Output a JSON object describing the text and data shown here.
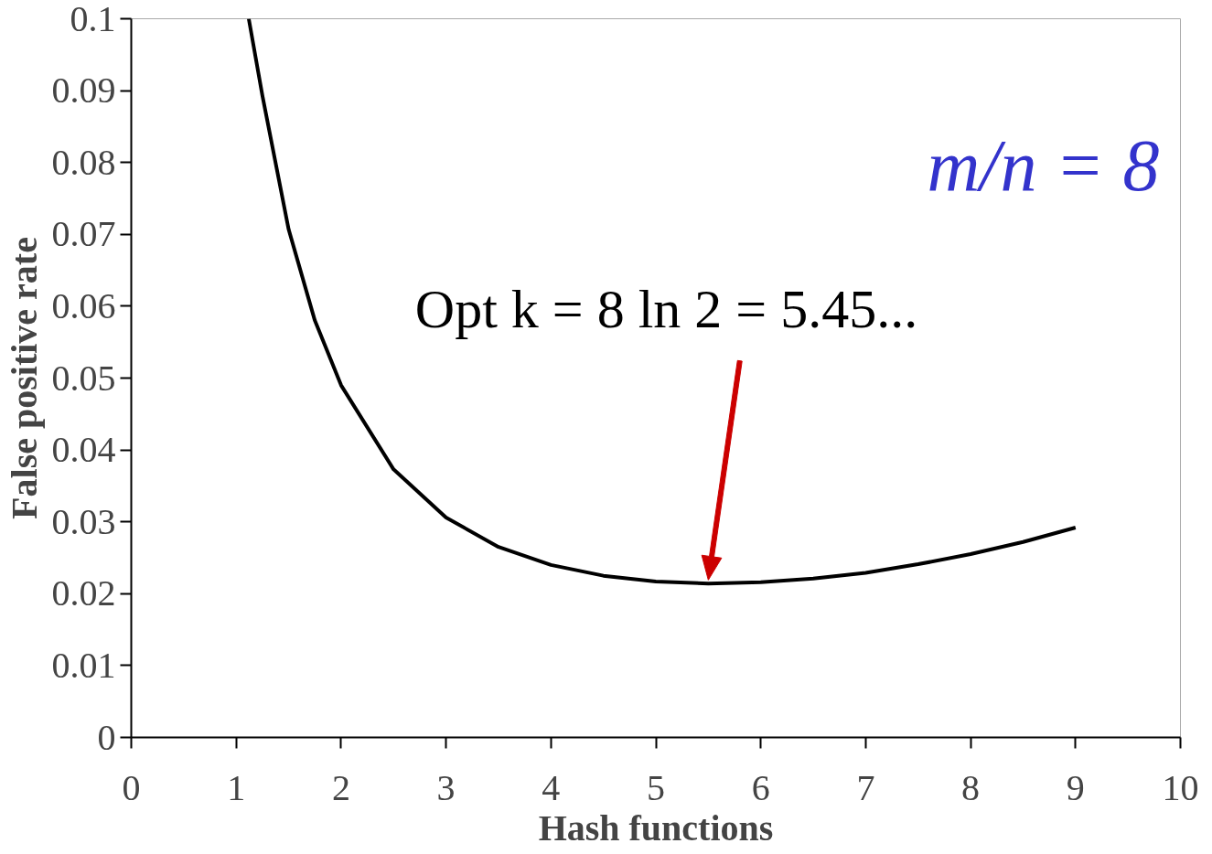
{
  "chart_data": {
    "type": "line",
    "xlabel": "Hash functions",
    "ylabel": "False positive rate",
    "x": [
      1.12,
      1.25,
      1.5,
      1.75,
      2,
      2.5,
      3,
      3.5,
      4,
      4.5,
      5,
      5.5,
      6,
      6.5,
      7,
      7.5,
      8,
      8.5,
      9
    ],
    "series": [
      {
        "color": "#000000",
        "values": [
          0.1,
          0.0893,
          0.0707,
          0.058,
          0.049,
          0.0373,
          0.0306,
          0.0265,
          0.024,
          0.0225,
          0.0217,
          0.0214,
          0.0216,
          0.0221,
          0.0229,
          0.0241,
          0.0255,
          0.0272,
          0.0292
        ]
      }
    ],
    "xlim": [
      0,
      10
    ],
    "ylim": [
      0,
      0.1
    ],
    "xticks": [
      0,
      1,
      2,
      3,
      4,
      5,
      6,
      7,
      8,
      9,
      10
    ],
    "yticks": [
      0,
      0.01,
      0.02,
      0.03,
      0.04,
      0.05,
      0.06,
      0.07,
      0.08,
      0.09,
      0.1
    ],
    "grid": false,
    "marker": "none",
    "line_style": "solid",
    "annotations": [
      "m/n = 8",
      "Opt k = 8 ln 2 = 5.45..."
    ]
  }
}
